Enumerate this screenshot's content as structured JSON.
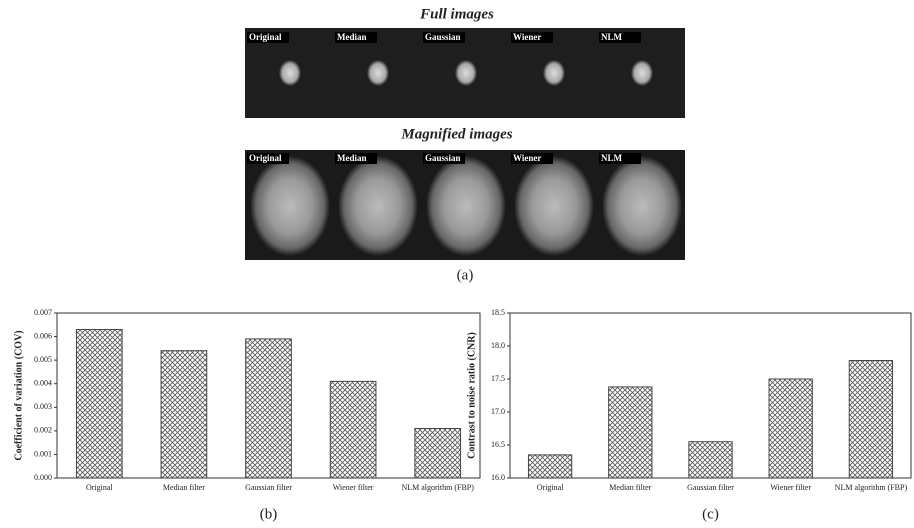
{
  "figure": {
    "full_title": "Full images",
    "magnified_title": "Magnified images",
    "image_labels": [
      "Original",
      "Median",
      "Gaussian",
      "Wiener",
      "NLM"
    ],
    "panel_a": "(a)"
  },
  "chart_data": [
    {
      "type": "bar",
      "panel": "(b)",
      "ylabel": "Coefficient of variation (COV)",
      "categories": [
        "Original",
        "Median filter",
        "Gaussian filter",
        "Wiener filter",
        "NLM algorithm (FBP)"
      ],
      "values": [
        0.0063,
        0.0054,
        0.0059,
        0.0041,
        0.0021
      ],
      "color": "#444444",
      "ylim": [
        0,
        0.007
      ],
      "yticks": [
        {
          "value": 0,
          "label": "0.000"
        },
        0.001,
        0.002,
        0.003,
        0.004,
        0.005,
        0.006,
        0.007
      ]
    },
    {
      "type": "bar",
      "panel": "(c)",
      "ylabel": "Contrast to noise ratio (CNR)",
      "categories": [
        "Original",
        "Median filter",
        "Gaussian filter",
        "Wiener filter",
        "NLM algorithm (FBP)"
      ],
      "values": [
        16.35,
        17.38,
        16.55,
        17.5,
        17.78
      ],
      "color": "#444444",
      "ylim": [
        16,
        18.5
      ],
      "yticks": [
        {
          "value": 16,
          "label": "16.0"
        },
        16.5,
        {
          "value": 17,
          "label": "17.0"
        },
        17.5,
        {
          "value": 18,
          "label": "18.0"
        },
        18.5
      ]
    }
  ]
}
